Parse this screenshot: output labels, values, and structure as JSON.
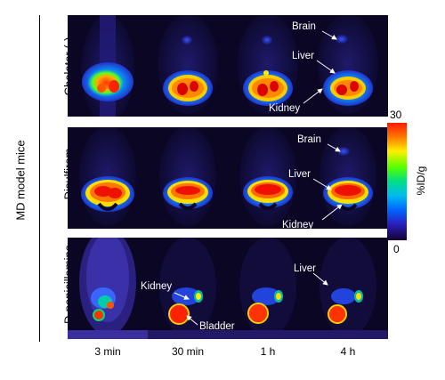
{
  "figure": {
    "group_label": "MD model mice",
    "rows": [
      {
        "label": "Chelator (-)"
      },
      {
        "label": "Disulfiram"
      },
      {
        "label": "D-penicillamine"
      }
    ],
    "columns": [
      "3 min",
      "30 min",
      "1 h",
      "4 h"
    ],
    "annotations": {
      "row1_brain": "Brain",
      "row1_liver": "Liver",
      "row1_kidney": "Kidney",
      "row2_brain": "Brain",
      "row2_liver": "Liver",
      "row2_kidney": "Kidney",
      "row3_kidney": "Kidney",
      "row3_bladder": "Bladder",
      "row3_liver": "Liver"
    },
    "colorbar": {
      "max": "30",
      "min": "0",
      "unit": "%ID/g",
      "colors": [
        "#ff2200",
        "#ff8800",
        "#ffee00",
        "#66ff00",
        "#00dd66",
        "#00ccee",
        "#0077ff",
        "#2222cc",
        "#331177",
        "#110033"
      ]
    }
  }
}
